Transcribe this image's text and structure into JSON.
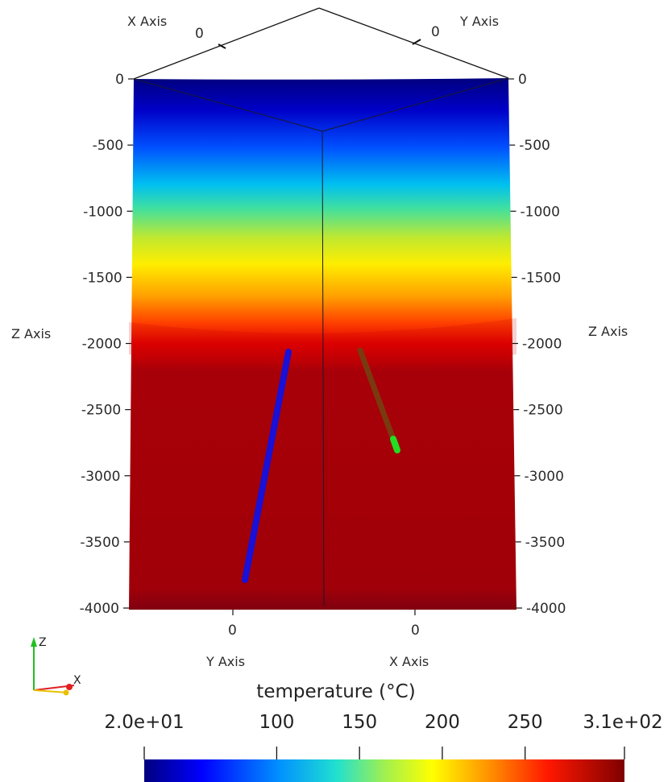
{
  "axes": {
    "x_axis_label": "X Axis",
    "y_axis_label": "Y Axis",
    "z_axis_label": "Z Axis",
    "top_tick_left": "0",
    "top_tick_right": "0",
    "z_ticks": [
      "0",
      "-500",
      "-1000",
      "-1500",
      "-2000",
      "-2500",
      "-3000",
      "-3500",
      "-4000"
    ],
    "z_tick_values": [
      0,
      -500,
      -1000,
      -1500,
      -2000,
      -2500,
      -3000,
      -3500,
      -4000
    ],
    "bottom_tick_left": "0",
    "bottom_tick_right": "0"
  },
  "orientation_widget": {
    "z_label": "Z",
    "x_label": "X"
  },
  "colorbar": {
    "title": "temperature (°C)",
    "min_label": "2.0e+01",
    "max_label": "3.1e+02",
    "min_value": 20,
    "max_value": 310,
    "ticks": [
      "100",
      "150",
      "200",
      "250"
    ],
    "tick_values": [
      100,
      150,
      200,
      250
    ],
    "colormap": [
      "#00007f",
      "#0000ff",
      "#00b4ff",
      "#3fe0a0",
      "#a0e04f",
      "#ffff00",
      "#ffa000",
      "#ff2000",
      "#b00000",
      "#7f0000"
    ]
  },
  "scene_colors": {
    "well_1": "#1a10d6",
    "well_2": "#7a3a10",
    "well_2_tip": "#22dd22",
    "orientation_x": "#e02020",
    "orientation_y": "#e8c000",
    "orientation_z": "#20c020"
  }
}
